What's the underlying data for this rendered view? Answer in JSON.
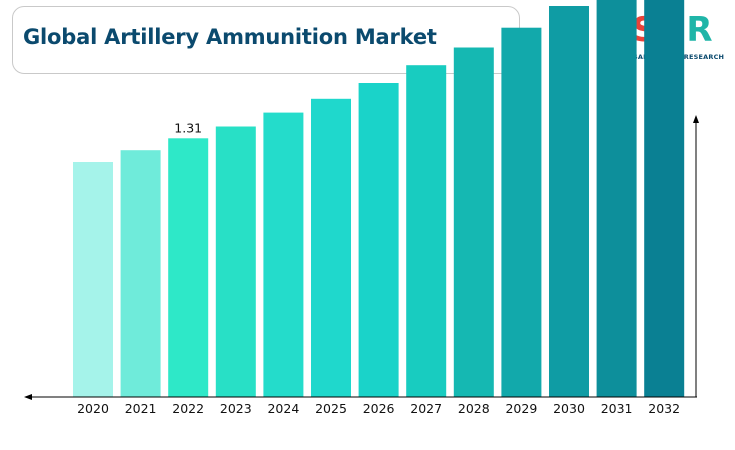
{
  "header": {
    "title": "Global Artillery Ammunition Market"
  },
  "logo": {
    "mark_s": "S",
    "mark_gr": "GR",
    "caption": "SAN GLOBAL RESEARCH",
    "colors": {
      "red": "#e8433a",
      "teal": "#1fb5a8",
      "navy": "#0b4a6e"
    }
  },
  "chart_data": {
    "type": "bar",
    "categories": [
      "2020",
      "2021",
      "2022",
      "2023",
      "2024",
      "2025",
      "2026",
      "2027",
      "2028",
      "2029",
      "2030",
      "2031",
      "2032"
    ],
    "values": [
      1.19,
      1.25,
      1.31,
      1.37,
      1.44,
      1.51,
      1.59,
      1.68,
      1.77,
      1.87,
      1.98,
      2.09,
      2.21
    ],
    "data_labels": [
      {
        "category": "2022",
        "text": "1.31"
      }
    ],
    "colors": [
      "#a5f3ea",
      "#6febda",
      "#2ee8c8",
      "#28e0c6",
      "#24dccb",
      "#1fd8cc",
      "#1ad3c9",
      "#18ccc0",
      "#15b8b2",
      "#12a9ab",
      "#0f9ca4",
      "#0d8f9b",
      "#0a8093"
    ],
    "title": "Global Artillery Ammunition Market",
    "xlabel": "",
    "ylabel": "",
    "ylim": [
      0,
      2.56
    ],
    "grid": false,
    "legend": "none"
  }
}
